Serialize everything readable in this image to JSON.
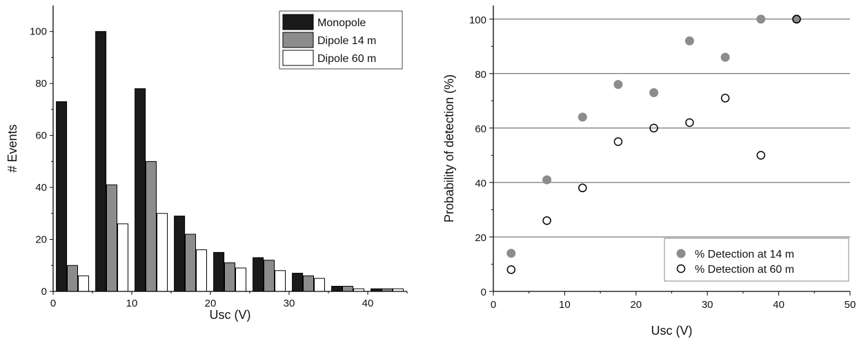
{
  "chart_data": [
    {
      "type": "bar",
      "xlabel": "Usc (V)",
      "ylabel": "# Events",
      "xlim": [
        0,
        45
      ],
      "ylim": [
        0,
        110
      ],
      "xticks": [
        0,
        10,
        20,
        30,
        40
      ],
      "yticks": [
        0,
        20,
        40,
        60,
        80,
        100
      ],
      "x": [
        2.5,
        7.5,
        12.5,
        17.5,
        22.5,
        27.5,
        32.5,
        37.5,
        42.5
      ],
      "bin_width": 5,
      "grid": false,
      "legend": "top-right",
      "series": [
        {
          "name": "Monopole",
          "color": "#1a1a1a",
          "values": [
            73,
            100,
            78,
            29,
            15,
            13,
            7,
            2,
            1
          ]
        },
        {
          "name": "Dipole 14 m",
          "color": "#8c8c8c",
          "values": [
            10,
            41,
            50,
            22,
            11,
            12,
            6,
            2,
            1
          ]
        },
        {
          "name": "Dipole 60 m",
          "color": "#ffffff",
          "values": [
            6,
            26,
            30,
            16,
            9,
            8,
            5,
            1,
            1
          ]
        }
      ]
    },
    {
      "type": "scatter",
      "xlabel": "Usc (V)",
      "ylabel": "Probability of detection (%)",
      "xlim": [
        0,
        50
      ],
      "ylim": [
        0,
        105
      ],
      "xticks": [
        0,
        10,
        20,
        30,
        40,
        50
      ],
      "yticks": [
        0,
        20,
        40,
        60,
        80,
        100
      ],
      "grid": "horizontal",
      "legend": "bottom-right",
      "series": [
        {
          "name": "% Detection at 14 m",
          "marker": "filled-circle",
          "color": "#8c8c8c",
          "x": [
            2.5,
            7.5,
            12.5,
            17.5,
            22.5,
            27.5,
            32.5,
            37.5,
            42.5
          ],
          "y": [
            14,
            41,
            64,
            76,
            73,
            92,
            86,
            100,
            100
          ]
        },
        {
          "name": "% Detection at 60 m",
          "marker": "open-circle",
          "color": "#000000",
          "x": [
            2.5,
            7.5,
            12.5,
            17.5,
            22.5,
            27.5,
            32.5,
            37.5,
            42.5
          ],
          "y": [
            8,
            26,
            38,
            55,
            60,
            62,
            71,
            50,
            100
          ]
        }
      ]
    }
  ]
}
